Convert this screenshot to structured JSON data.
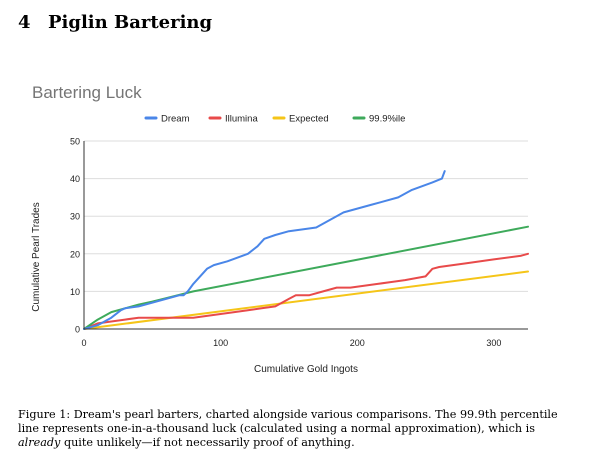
{
  "section": {
    "number": "4",
    "title": "Piglin Bartering"
  },
  "caption": {
    "label": "Figure 1:",
    "text_before": "Dream's pearl barters, charted alongside various comparisons. The 99.9th percentile line represents one-in-a-thousand luck (calculated using a normal approximation), which is",
    "emphasis": "already",
    "text_after": "quite unlikely—if not necessarily proof of anything."
  },
  "colors": {
    "dream": "#4a86e8",
    "illumina": "#e84a4a",
    "expected": "#f5c518",
    "p999": "#3eaa5b",
    "grid": "#dddddd",
    "axis": "#333333",
    "title": "#757575",
    "text": "#222222"
  },
  "chart_data": {
    "type": "line",
    "title": "Bartering Luck",
    "xlabel": "Cumulative Gold Ingots",
    "ylabel": "Cumulative Pearl Trades",
    "xlim": [
      0,
      325
    ],
    "ylim": [
      0,
      50
    ],
    "xticks": [
      0,
      100,
      200,
      300
    ],
    "yticks": [
      0,
      10,
      20,
      30,
      40,
      50
    ],
    "grid": "horizontal",
    "legend_position": "top",
    "series": [
      {
        "name": "Dream",
        "color": "#4a86e8",
        "x": [
          0,
          10,
          20,
          27,
          30,
          40,
          50,
          60,
          70,
          73,
          76,
          80,
          90,
          95,
          105,
          120,
          127,
          132,
          140,
          150,
          160,
          170,
          190,
          210,
          230,
          240,
          255,
          262,
          264
        ],
        "y": [
          0,
          1,
          3,
          5,
          5.5,
          6,
          7,
          8,
          9,
          9,
          10,
          12,
          16,
          17,
          18,
          20,
          22,
          24,
          25,
          26,
          26.5,
          27,
          31,
          33,
          35,
          37,
          39,
          40,
          42
        ]
      },
      {
        "name": "Illumina",
        "color": "#e84a4a",
        "x": [
          0,
          10,
          20,
          30,
          40,
          50,
          60,
          70,
          80,
          100,
          110,
          120,
          130,
          140,
          150,
          155,
          165,
          175,
          185,
          195,
          205,
          215,
          225,
          235,
          250,
          255,
          260,
          280,
          300,
          320,
          325
        ],
        "y": [
          0,
          1.5,
          2,
          2.5,
          3,
          3,
          3,
          3,
          3,
          4,
          4.5,
          5,
          5.5,
          6,
          8,
          9,
          9,
          10,
          11,
          11,
          11.5,
          12,
          12.5,
          13,
          14,
          16,
          16.5,
          17.5,
          18.5,
          19.5,
          20
        ]
      },
      {
        "name": "Expected",
        "color": "#f5c518",
        "x": [
          0,
          325
        ],
        "y": [
          0,
          15.3
        ]
      },
      {
        "name": "99.9%ile",
        "color": "#3eaa5b",
        "x": [
          0,
          10,
          20,
          30,
          40,
          50,
          60,
          80,
          325
        ],
        "y": [
          0,
          2.5,
          4.5,
          5.5,
          6.5,
          7.3,
          8.2,
          10,
          27.2
        ]
      }
    ]
  }
}
